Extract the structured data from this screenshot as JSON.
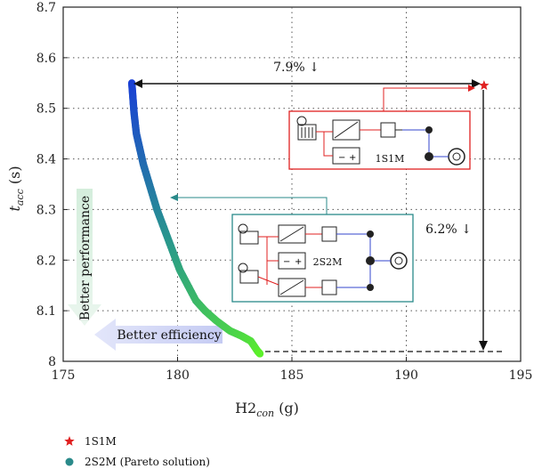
{
  "chart_data": {
    "type": "scatter",
    "xlabel": {
      "base": "H2",
      "sub": "con",
      "unit": " (g)"
    },
    "ylabel": {
      "base": "t",
      "sub": "acc",
      "unit": " (s)"
    },
    "xlim": [
      175,
      195
    ],
    "ylim": [
      8.0,
      8.7
    ],
    "xticks": [
      "175",
      "180",
      "185",
      "190",
      "195"
    ],
    "yticks": [
      "8",
      "8.1",
      "8.2",
      "8.3",
      "8.4",
      "8.5",
      "8.6",
      "8.7"
    ],
    "grid": true,
    "legend_position": "bottom-left",
    "series": [
      {
        "name": "1S1M",
        "marker": "star",
        "color": "#e02020",
        "points": [
          [
            193.4,
            8.545
          ]
        ]
      },
      {
        "name": "2S2M (Pareto solution)",
        "marker": "circle",
        "color": "#2a8a8a",
        "points": [
          [
            178.0,
            8.55
          ],
          [
            178.05,
            8.52
          ],
          [
            178.1,
            8.49
          ],
          [
            178.2,
            8.45
          ],
          [
            178.35,
            8.42
          ],
          [
            178.5,
            8.39
          ],
          [
            178.7,
            8.36
          ],
          [
            178.9,
            8.33
          ],
          [
            179.1,
            8.3
          ],
          [
            179.35,
            8.27
          ],
          [
            179.6,
            8.24
          ],
          [
            179.85,
            8.21
          ],
          [
            180.1,
            8.18
          ],
          [
            180.45,
            8.15
          ],
          [
            180.8,
            8.12
          ],
          [
            181.2,
            8.1
          ],
          [
            181.7,
            8.08
          ],
          [
            182.3,
            8.06
          ],
          [
            182.8,
            8.05
          ],
          [
            183.2,
            8.04
          ],
          [
            183.5,
            8.02
          ],
          [
            183.6,
            8.015
          ]
        ]
      }
    ],
    "annotations": {
      "top_arrow": "7.9% ↓",
      "right_arrow": "6.2% ↓",
      "better_performance": "Better performance",
      "better_efficiency": "Better efficiency",
      "box_1s1m_label": "1S1M",
      "box_2s2m_label": "2S2M"
    }
  },
  "colors": {
    "red": "#e02020",
    "teal": "#2a8a8a",
    "pareto_start": "#1a3fd6",
    "pareto_end": "#5cf02a",
    "perf_arrow": "#cfe8d6",
    "eff_arrow": "#c9cdf2"
  }
}
